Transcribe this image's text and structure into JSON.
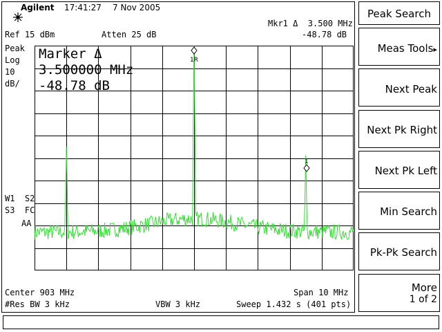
{
  "header": {
    "brand": "Agilent",
    "time": "17:41:27",
    "date": "7 Nov 2005"
  },
  "marker_readout": {
    "line1": "Mkr1 Δ  3.500 MHz",
    "line2": "-48.78 dB"
  },
  "settings": {
    "ref_level": "Ref 15 dBm",
    "attenuation": "Atten 25 dB",
    "peak": "Peak",
    "log": "Log",
    "scale_value": "10",
    "scale_unit": "dB/",
    "w1_s2": "W1  S2",
    "s3_fc": "S3  FC",
    "aa": "AA"
  },
  "marker_box": {
    "title": "Marker Δ",
    "frequency": "3.500000 MHz",
    "amplitude": "-48.78 dB"
  },
  "footer": {
    "center": "Center 903 MHz",
    "span": "Span 10 MHz",
    "res_bw": "#Res BW 3 kHz",
    "vbw": "VBW 3 kHz",
    "sweep": "Sweep 1.432 s (401 pts)"
  },
  "softkeys": {
    "title": "Peak Search",
    "meas_tools": "Meas Tools",
    "next_peak": "Next Peak",
    "next_pk_right": "Next Pk Right",
    "next_pk_left": "Next Pk Left",
    "min_search": "Min Search",
    "pk_pk_search": "Pk-Pk Search",
    "more": "More",
    "more_page": "1 of 2"
  },
  "markers": {
    "ref_label": "1R",
    "delta_label": "1"
  },
  "colors": {
    "trace": "#33dd33",
    "grid": "#000000",
    "background": "#ffffff"
  },
  "chart_data": {
    "type": "line",
    "x_center_mhz": 903,
    "x_span_mhz": 10,
    "points": 401,
    "y_ref_dbm": 15,
    "y_scale_db_per_div": 10,
    "grid": true,
    "noise_floor_dbm": -68,
    "peaks": [
      {
        "freq_offset_mhz": -4.0,
        "level_dbm": -30
      },
      {
        "freq_offset_mhz": 0.0,
        "level_dbm": 15
      },
      {
        "freq_offset_mhz": 3.5,
        "level_dbm": -33.8
      }
    ]
  }
}
